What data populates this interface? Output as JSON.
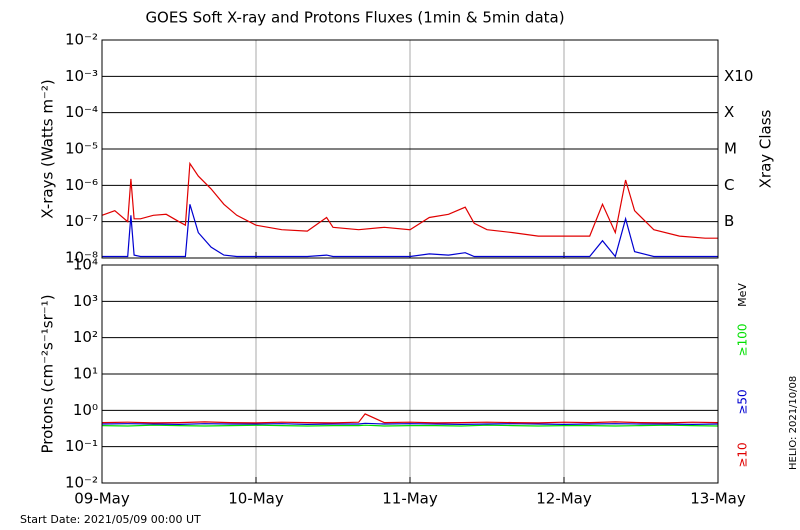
{
  "page": {
    "footer": "Start Date: 2021/05/09 00:00 UT",
    "stamp": "HELIO: 2021/10/08"
  },
  "chart_data": [
    {
      "type": "line",
      "title": "GOES Soft X-ray and Protons Fluxes   (1min & 5min data)",
      "y_label": "X-rays (Watts m⁻²)",
      "y2_label": "Xray Class",
      "log_y": true,
      "x": [
        0,
        2,
        4,
        4.5,
        5,
        6,
        8,
        10,
        12,
        13,
        13.7,
        15,
        17,
        19,
        21,
        24,
        28,
        32,
        35,
        36,
        40,
        44,
        48,
        51,
        54,
        56.6,
        58,
        60,
        64,
        68,
        72,
        76,
        78,
        80,
        81.6,
        83,
        86,
        90,
        94,
        96
      ],
      "xlim": [
        0,
        96
      ],
      "xticks": [
        0,
        24,
        48,
        72,
        96
      ],
      "ylim": [
        1e-08,
        0.01
      ],
      "yticks": [
        {
          "value": 1e-08,
          "label": "10⁻⁸"
        },
        {
          "value": 1e-07,
          "label": "10⁻⁷"
        },
        {
          "value": 1e-06,
          "label": "10⁻⁶"
        },
        {
          "value": 1e-05,
          "label": "10⁻⁵"
        },
        {
          "value": 0.0001,
          "label": "10⁻⁴"
        },
        {
          "value": 0.001,
          "label": "10⁻³"
        },
        {
          "value": 0.01,
          "label": "10⁻²"
        }
      ],
      "class_labels": [
        {
          "value": 1e-07,
          "label": "B"
        },
        {
          "value": 1e-06,
          "label": "C"
        },
        {
          "value": 1e-05,
          "label": "M"
        },
        {
          "value": 0.0001,
          "label": "X"
        },
        {
          "value": 0.001,
          "label": "X10"
        }
      ],
      "grid": true,
      "series": [
        {
          "color": "#e00000",
          "values": [
            1.5e-07,
            2e-07,
            1e-07,
            1.5e-06,
            1.2e-07,
            1.2e-07,
            1.5e-07,
            1.6e-07,
            1e-07,
            8e-08,
            4e-06,
            1.8e-06,
            8e-07,
            3e-07,
            1.5e-07,
            8e-08,
            6e-08,
            5.5e-08,
            1.3e-07,
            7e-08,
            6e-08,
            7e-08,
            6e-08,
            1.3e-07,
            1.6e-07,
            2.5e-07,
            9e-08,
            6e-08,
            5e-08,
            4e-08,
            4e-08,
            4e-08,
            3e-07,
            5e-08,
            1.4e-06,
            2e-07,
            6e-08,
            4e-08,
            3.5e-08,
            3.5e-08
          ]
        },
        {
          "color": "#0000d0",
          "values": [
            1.1e-08,
            1.1e-08,
            1.1e-08,
            1.5e-07,
            1.2e-08,
            1.1e-08,
            1.1e-08,
            1.1e-08,
            1.1e-08,
            1.1e-08,
            3e-07,
            5e-08,
            2e-08,
            1.2e-08,
            1.1e-08,
            1.1e-08,
            1.1e-08,
            1.1e-08,
            1.2e-08,
            1.1e-08,
            1.1e-08,
            1.1e-08,
            1.1e-08,
            1.3e-08,
            1.2e-08,
            1.4e-08,
            1.1e-08,
            1.1e-08,
            1.1e-08,
            1.1e-08,
            1.1e-08,
            1.1e-08,
            3e-08,
            1.1e-08,
            1.2e-07,
            1.5e-08,
            1.1e-08,
            1.1e-08,
            1.1e-08,
            1.1e-08
          ]
        }
      ]
    },
    {
      "type": "line",
      "y_label": "Protons (cm⁻²s⁻¹sr⁻¹)",
      "units": "MeV",
      "log_y": true,
      "x": [
        0,
        4,
        8,
        12,
        16,
        20,
        24,
        28,
        32,
        36,
        40,
        41,
        44,
        48,
        52,
        56,
        60,
        64,
        68,
        72,
        76,
        80,
        84,
        88,
        92,
        96
      ],
      "xlim": [
        0,
        96
      ],
      "xticks": [
        {
          "value": 0,
          "label": "09-May"
        },
        {
          "value": 24,
          "label": "10-May"
        },
        {
          "value": 48,
          "label": "11-May"
        },
        {
          "value": 72,
          "label": "12-May"
        },
        {
          "value": 96,
          "label": "13-May"
        }
      ],
      "ylim": [
        0.01,
        10000
      ],
      "yticks": [
        {
          "value": 0.01,
          "label": "10⁻²"
        },
        {
          "value": 0.1,
          "label": "10⁻¹"
        },
        {
          "value": 1,
          "label": "10⁰"
        },
        {
          "value": 10,
          "label": "10¹"
        },
        {
          "value": 100,
          "label": "10²"
        },
        {
          "value": 1000,
          "label": "10³"
        },
        {
          "value": 10000,
          "label": "10⁴"
        }
      ],
      "threshold": 10,
      "grid": true,
      "series": [
        {
          "name": "≥100",
          "color": "#00e000",
          "values": [
            0.38,
            0.37,
            0.39,
            0.38,
            0.37,
            0.38,
            0.39,
            0.38,
            0.37,
            0.38,
            0.38,
            0.39,
            0.37,
            0.38,
            0.38,
            0.37,
            0.39,
            0.38,
            0.37,
            0.38,
            0.38,
            0.37,
            0.38,
            0.39,
            0.38,
            0.37
          ]
        },
        {
          "name": "≥50",
          "color": "#0000d0",
          "values": [
            0.42,
            0.43,
            0.42,
            0.41,
            0.43,
            0.42,
            0.42,
            0.43,
            0.41,
            0.42,
            0.42,
            0.44,
            0.42,
            0.43,
            0.42,
            0.41,
            0.42,
            0.43,
            0.42,
            0.41,
            0.42,
            0.43,
            0.42,
            0.42,
            0.41,
            0.42
          ]
        },
        {
          "name": "≥10",
          "color": "#e00000",
          "values": [
            0.46,
            0.47,
            0.45,
            0.46,
            0.48,
            0.46,
            0.45,
            0.47,
            0.46,
            0.45,
            0.47,
            0.8,
            0.46,
            0.47,
            0.45,
            0.46,
            0.47,
            0.46,
            0.45,
            0.47,
            0.46,
            0.48,
            0.46,
            0.45,
            0.47,
            0.46
          ]
        }
      ]
    }
  ]
}
